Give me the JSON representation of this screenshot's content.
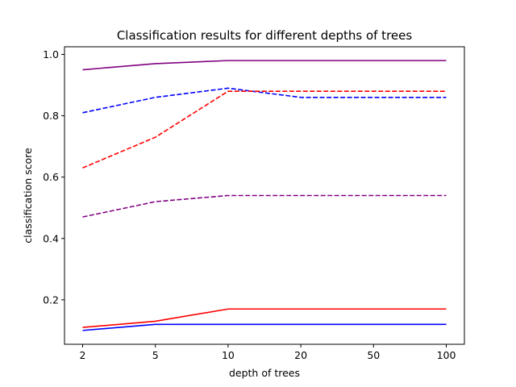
{
  "chart_data": {
    "type": "line",
    "title": "Classification results for different depths of trees",
    "xlabel": "depth of trees",
    "ylabel": "classification score",
    "categories": [
      "2",
      "5",
      "10",
      "20",
      "50",
      "100"
    ],
    "ylim": [
      0.055,
      1.025
    ],
    "yticks": [
      0.2,
      0.4,
      0.6,
      0.8,
      1.0
    ],
    "ytick_labels": [
      "0.2",
      "0.4",
      "0.6",
      "0.8",
      "1.0"
    ],
    "grid": false,
    "series": [
      {
        "color": "#800080",
        "style": "solid",
        "values": [
          0.95,
          0.97,
          0.98,
          0.98,
          0.98,
          0.98
        ]
      },
      {
        "color": "#0000ff",
        "style": "dashed",
        "values": [
          0.81,
          0.86,
          0.89,
          0.86,
          0.86,
          0.86
        ]
      },
      {
        "color": "#ff0000",
        "style": "dashed",
        "values": [
          0.63,
          0.73,
          0.88,
          0.88,
          0.88,
          0.88
        ]
      },
      {
        "color": "#800080",
        "style": "dashed",
        "values": [
          0.47,
          0.52,
          0.54,
          0.54,
          0.54,
          0.54
        ]
      },
      {
        "color": "#ff0000",
        "style": "solid",
        "values": [
          0.11,
          0.13,
          0.17,
          0.17,
          0.17,
          0.17
        ]
      },
      {
        "color": "#0000ff",
        "style": "solid",
        "values": [
          0.1,
          0.12,
          0.12,
          0.12,
          0.12,
          0.12
        ]
      }
    ]
  }
}
